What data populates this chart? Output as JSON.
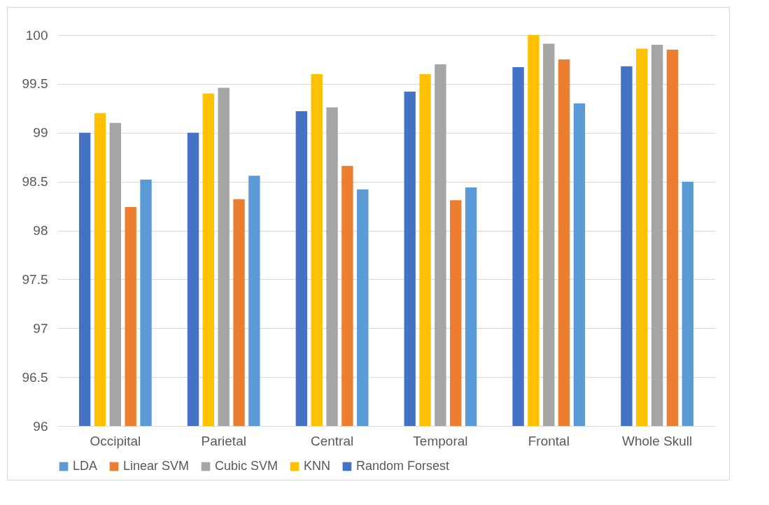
{
  "chart_data": {
    "type": "bar",
    "categories": [
      "Occipital",
      "Parietal",
      "Central",
      "Temporal",
      "Frontal",
      "Whole Skull"
    ],
    "series": [
      {
        "name": "LDA",
        "color": "#5b9bd5",
        "values": [
          98.52,
          98.56,
          98.42,
          98.44,
          99.3,
          98.5
        ]
      },
      {
        "name": "Linear SVM",
        "color": "#ed7d31",
        "values": [
          98.24,
          98.32,
          98.66,
          98.31,
          99.75,
          99.85
        ]
      },
      {
        "name": "Cubic SVM",
        "color": "#a5a5a5",
        "values": [
          99.1,
          99.46,
          99.26,
          99.7,
          99.91,
          99.9
        ]
      },
      {
        "name": "KNN",
        "color": "#ffc000",
        "values": [
          99.2,
          99.4,
          99.6,
          99.6,
          100,
          99.86
        ]
      },
      {
        "name": "Random Forsest",
        "color": "#4472c4",
        "values": [
          99.0,
          99.0,
          99.22,
          99.42,
          99.67,
          99.68
        ]
      }
    ],
    "ylim": [
      96,
      100
    ],
    "yticks": [
      96,
      96.5,
      97,
      97.5,
      98,
      98.5,
      99,
      99.5,
      100
    ],
    "grid": "y",
    "legend": "bottom"
  }
}
